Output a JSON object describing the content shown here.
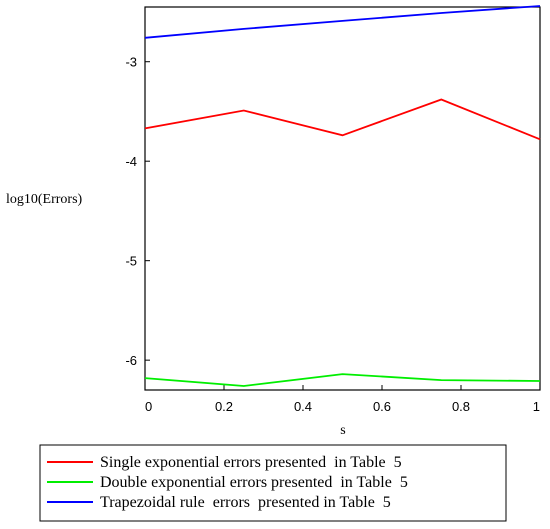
{
  "chart_data": {
    "type": "line",
    "title": "",
    "xlabel": "s",
    "ylabel": "log10(Errors)",
    "xlim": [
      0,
      1
    ],
    "ylim": [
      -6.3,
      -2.45
    ],
    "xticks": [
      {
        "value": 0,
        "label": "0"
      },
      {
        "value": 0.2,
        "label": "0.2"
      },
      {
        "value": 0.4,
        "label": "0.4"
      },
      {
        "value": 0.6,
        "label": "0.6"
      },
      {
        "value": 0.8,
        "label": "0.8"
      },
      {
        "value": 1,
        "label": "1"
      }
    ],
    "yticks": [
      {
        "value": -3,
        "label": "-3"
      },
      {
        "value": -4,
        "label": "-4"
      },
      {
        "value": -5,
        "label": "-5"
      },
      {
        "value": -6,
        "label": "-6"
      }
    ],
    "grid": false,
    "legend_position": "bottom",
    "series": [
      {
        "name": "Single exponential errors presented  in Table  5",
        "color": "#ff0000",
        "x": [
          0,
          0.25,
          0.5,
          0.75,
          1
        ],
        "y": [
          -3.67,
          -3.49,
          -3.74,
          -3.38,
          -3.78
        ]
      },
      {
        "name": "Double exponential errors presented  in Table  5",
        "color": "#00ee00",
        "x": [
          0,
          0.25,
          0.5,
          0.75,
          1
        ],
        "y": [
          -6.18,
          -6.26,
          -6.14,
          -6.2,
          -6.21
        ]
      },
      {
        "name": "Trapezoidal rule  errors  presented in Table  5",
        "color": "#0000ff",
        "x": [
          0,
          0.25,
          0.5,
          0.75,
          1
        ],
        "y": [
          -2.76,
          -2.67,
          -2.59,
          -2.51,
          -2.44
        ]
      }
    ]
  }
}
